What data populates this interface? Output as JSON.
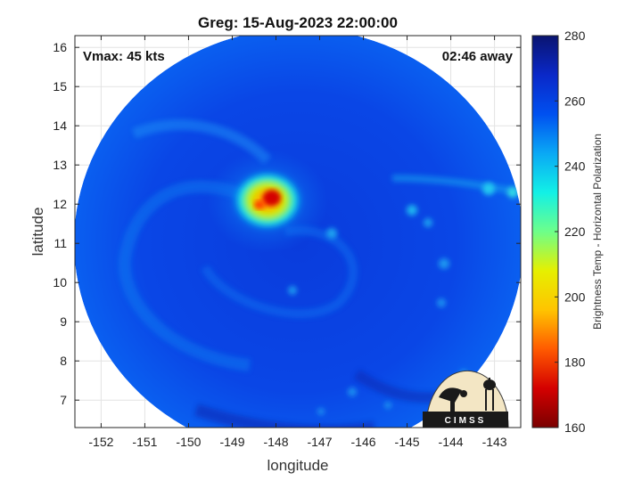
{
  "title": "Greg: 15-Aug-2023 22:00:00",
  "vmax_label": "Vmax: 45 kts",
  "time_away_label": "02:46 away",
  "x_axis": {
    "label": "longitude",
    "range": [
      -152.6,
      -142.4
    ],
    "ticks": [
      -152,
      -151,
      -150,
      -149,
      -148,
      -147,
      -146,
      -145,
      -144,
      -143
    ]
  },
  "y_axis": {
    "label": "latitude",
    "range": [
      6.3,
      16.3
    ],
    "ticks": [
      7,
      8,
      9,
      10,
      11,
      12,
      13,
      14,
      15,
      16
    ]
  },
  "colorbar": {
    "label": "Brightness Temp - Horizontal Polarization",
    "range": [
      160,
      280
    ],
    "ticks": [
      160,
      180,
      200,
      220,
      240,
      260,
      280
    ],
    "colors": [
      "#7a0000",
      "#d40000",
      "#ff5a00",
      "#ffc400",
      "#e6f000",
      "#6dff8a",
      "#12f0e6",
      "#0aa8f5",
      "#0050f0",
      "#0a28c8",
      "#0a1470"
    ]
  },
  "swath": {
    "center_lon": -147.55,
    "center_lat": 11.3,
    "background_tb": 258
  },
  "storm": {
    "center_lon": -148.0,
    "center_lat": 11.95,
    "min_tb": 175
  },
  "logo": {
    "text": "CIMSS"
  }
}
